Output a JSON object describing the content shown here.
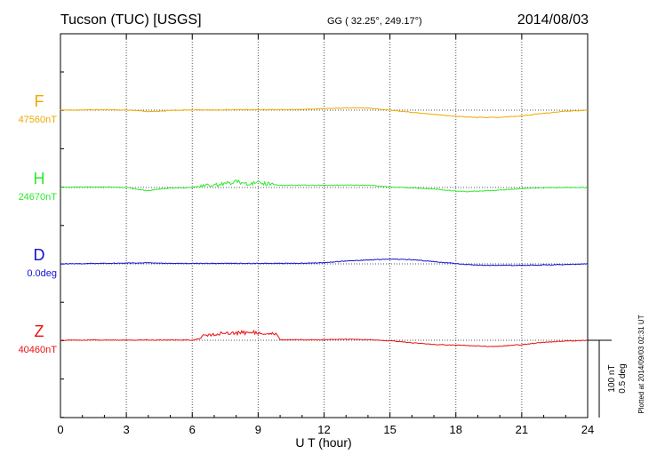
{
  "header": {
    "station": "Tucson (TUC)  [USGS]",
    "coords": "GG ( 32.25°, 249.17°)",
    "date": "2014/08/03"
  },
  "side_note": "Plotted at 2014/09/03 02:31  UT",
  "scale_note": {
    "line1": "100 nT",
    "line2": "0.5 deg"
  },
  "chart_data": {
    "type": "line",
    "title": "Tucson (TUC)  [USGS]  2014/08/03",
    "xlabel": "U T (hour)",
    "ylabel": "",
    "xlim": [
      0,
      24
    ],
    "x_ticks": [
      0,
      3,
      6,
      9,
      12,
      15,
      18,
      21,
      24
    ],
    "x_tick_labels": [
      "0",
      "3",
      "6",
      "9",
      "12",
      "15",
      "18",
      "21",
      "24"
    ],
    "grid": true,
    "scale_nT": 100,
    "scale_deg": 0.5,
    "series": [
      {
        "name": "F",
        "baseline_label": "47560nT",
        "baseline_value": 47560,
        "unit": "nT",
        "color": "#f0a800",
        "x": [
          0,
          1,
          2,
          3,
          3.5,
          4,
          4.5,
          5,
          6,
          7,
          8,
          9,
          10,
          11,
          12,
          13,
          13.5,
          14,
          15,
          16,
          17,
          18,
          18.5,
          19,
          20,
          21,
          22,
          23,
          23.5,
          24
        ],
        "values": [
          47560,
          47561,
          47562,
          47560,
          47558,
          47554,
          47556,
          47559,
          47561,
          47561,
          47562,
          47562,
          47562,
          47563,
          47566,
          47569,
          47569,
          47568,
          47560,
          47552,
          47544,
          47536,
          47534,
          47532,
          47532,
          47538,
          47548,
          47556,
          47558,
          47560
        ]
      },
      {
        "name": "H",
        "baseline_label": "24670nT",
        "baseline_value": 24670,
        "unit": "nT",
        "color": "#2ee82e",
        "x": [
          0,
          1,
          2,
          3,
          3.5,
          4,
          4.5,
          5,
          6,
          6.5,
          7,
          7.5,
          8,
          8.5,
          9,
          9.5,
          10,
          11,
          12,
          13,
          14,
          15,
          16,
          17,
          18,
          18.5,
          19,
          20,
          21,
          22,
          23,
          24
        ],
        "values": [
          24670,
          24672,
          24672,
          24670,
          24663,
          24658,
          24664,
          24668,
          24670,
          24676,
          24680,
          24684,
          24692,
          24686,
          24688,
          24684,
          24678,
          24679,
          24678,
          24679,
          24679,
          24672,
          24668,
          24664,
          24656,
          24654,
          24656,
          24660,
          24666,
          24669,
          24670,
          24670
        ]
      },
      {
        "name": "D",
        "baseline_label": "0.0deg",
        "baseline_value": 0.0,
        "unit": "deg",
        "color": "#1010d0",
        "x": [
          0,
          1,
          2,
          3,
          4,
          5,
          6,
          7,
          8,
          9,
          10,
          11,
          12,
          13,
          14,
          15,
          16,
          17,
          18,
          19,
          20,
          21,
          22,
          23,
          24
        ],
        "values": [
          0.0,
          0.005,
          0.01,
          0.015,
          0.02,
          0.008,
          0.01,
          0.008,
          0.01,
          0.01,
          0.01,
          0.012,
          0.025,
          0.055,
          0.075,
          0.095,
          0.08,
          0.045,
          0.005,
          -0.025,
          -0.03,
          -0.028,
          -0.02,
          -0.012,
          0.0
        ]
      },
      {
        "name": "Z",
        "baseline_label": "40460nT",
        "baseline_value": 40460,
        "unit": "nT",
        "color": "#e81010",
        "x": [
          0,
          1,
          2,
          3,
          4,
          5,
          6,
          6.3,
          6.6,
          7,
          7.5,
          8,
          8.5,
          9,
          9.5,
          9.8,
          10,
          11,
          12,
          13,
          14,
          15,
          16,
          17,
          18,
          19,
          19.5,
          20,
          21,
          22,
          23,
          24
        ],
        "values": [
          40460,
          40461,
          40461,
          40461,
          40461,
          40461,
          40461,
          40465,
          40478,
          40483,
          40487,
          40489,
          40489,
          40489,
          40489,
          40489,
          40462,
          40462,
          40462,
          40464,
          40463,
          40458,
          40450,
          40444,
          40441,
          40438,
          40436,
          40437,
          40443,
          40452,
          40457,
          40460
        ]
      }
    ]
  }
}
